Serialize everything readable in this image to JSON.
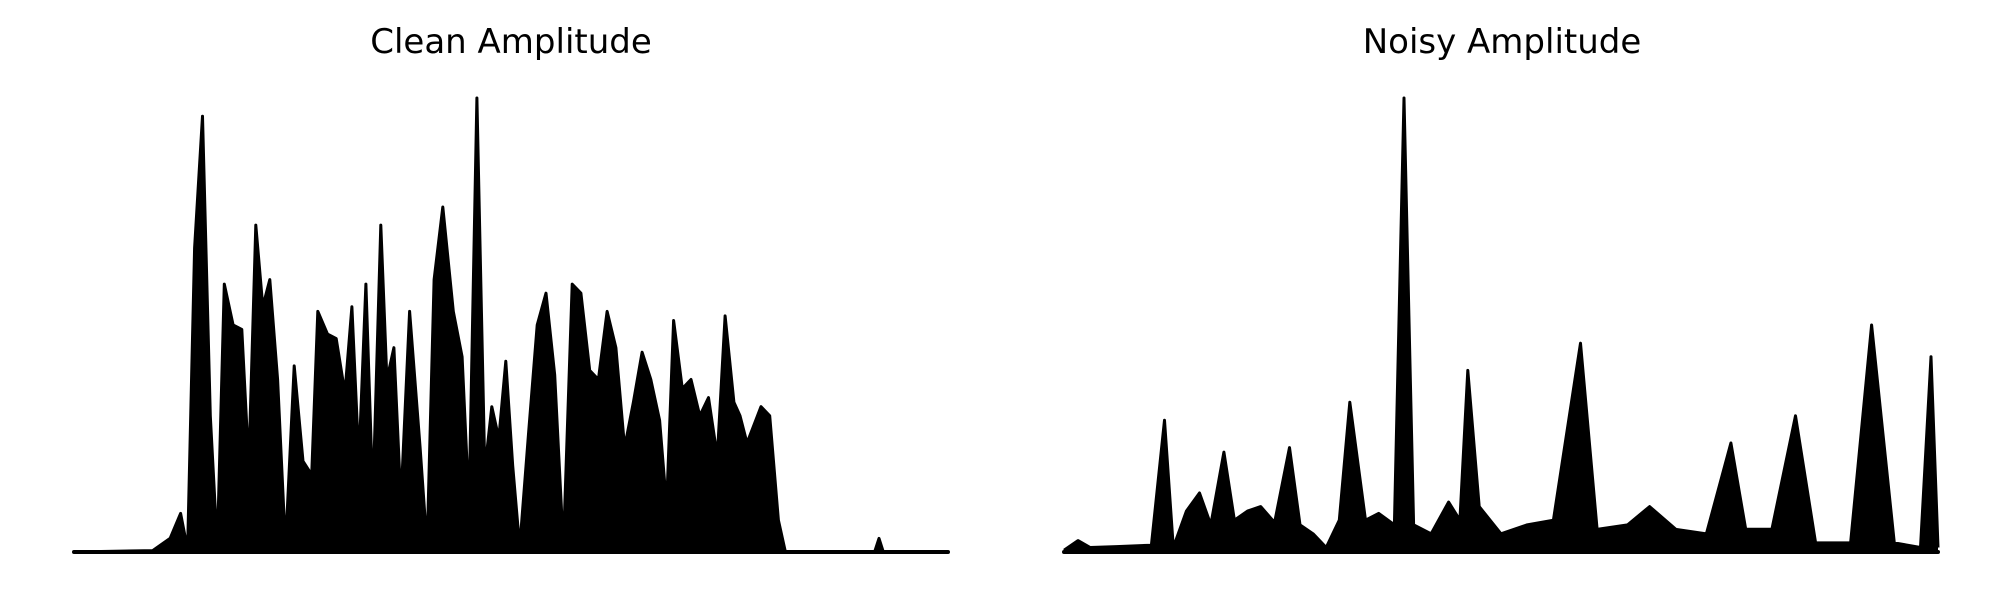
{
  "chart_data": [
    {
      "type": "line",
      "title": "Clean Amplitude",
      "axes_visible": false,
      "grid": false,
      "line_color": "#000000",
      "x_range": [
        0,
        1
      ],
      "ylim": [
        0,
        1
      ],
      "envelope": [
        [
          0.0,
          0.0
        ],
        [
          0.09,
          0.003
        ],
        [
          0.11,
          0.03
        ],
        [
          0.122,
          0.085
        ],
        [
          0.13,
          0.005
        ],
        [
          0.138,
          0.67
        ],
        [
          0.147,
          0.96
        ],
        [
          0.156,
          0.3
        ],
        [
          0.164,
          0.01
        ],
        [
          0.172,
          0.59
        ],
        [
          0.182,
          0.5
        ],
        [
          0.192,
          0.49
        ],
        [
          0.2,
          0.19
        ],
        [
          0.208,
          0.72
        ],
        [
          0.216,
          0.54
        ],
        [
          0.224,
          0.6
        ],
        [
          0.233,
          0.38
        ],
        [
          0.242,
          0.01
        ],
        [
          0.252,
          0.41
        ],
        [
          0.262,
          0.2
        ],
        [
          0.272,
          0.17
        ],
        [
          0.279,
          0.53
        ],
        [
          0.29,
          0.48
        ],
        [
          0.3,
          0.47
        ],
        [
          0.31,
          0.35
        ],
        [
          0.318,
          0.54
        ],
        [
          0.326,
          0.2
        ],
        [
          0.334,
          0.59
        ],
        [
          0.342,
          0.12
        ],
        [
          0.351,
          0.72
        ],
        [
          0.358,
          0.38
        ],
        [
          0.366,
          0.45
        ],
        [
          0.374,
          0.11
        ],
        [
          0.384,
          0.53
        ],
        [
          0.396,
          0.23
        ],
        [
          0.404,
          0.01
        ],
        [
          0.412,
          0.6
        ],
        [
          0.422,
          0.76
        ],
        [
          0.434,
          0.53
        ],
        [
          0.444,
          0.43
        ],
        [
          0.452,
          0.1
        ],
        [
          0.461,
          1.0
        ],
        [
          0.47,
          0.18
        ],
        [
          0.478,
          0.32
        ],
        [
          0.486,
          0.25
        ],
        [
          0.494,
          0.42
        ],
        [
          0.502,
          0.19
        ],
        [
          0.51,
          0.01
        ],
        [
          0.52,
          0.26
        ],
        [
          0.53,
          0.5
        ],
        [
          0.54,
          0.57
        ],
        [
          0.55,
          0.39
        ],
        [
          0.56,
          0.01
        ],
        [
          0.57,
          0.59
        ],
        [
          0.58,
          0.57
        ],
        [
          0.59,
          0.4
        ],
        [
          0.6,
          0.38
        ],
        [
          0.61,
          0.53
        ],
        [
          0.62,
          0.45
        ],
        [
          0.63,
          0.23
        ],
        [
          0.64,
          0.33
        ],
        [
          0.65,
          0.44
        ],
        [
          0.66,
          0.38
        ],
        [
          0.67,
          0.29
        ],
        [
          0.678,
          0.1
        ],
        [
          0.686,
          0.51
        ],
        [
          0.696,
          0.36
        ],
        [
          0.706,
          0.38
        ],
        [
          0.716,
          0.3
        ],
        [
          0.726,
          0.34
        ],
        [
          0.736,
          0.21
        ],
        [
          0.745,
          0.52
        ],
        [
          0.755,
          0.33
        ],
        [
          0.762,
          0.3
        ],
        [
          0.77,
          0.24
        ],
        [
          0.778,
          0.28
        ],
        [
          0.786,
          0.32
        ],
        [
          0.796,
          0.3
        ],
        [
          0.806,
          0.07
        ],
        [
          0.814,
          0.0
        ],
        [
          0.916,
          0.0
        ],
        [
          0.921,
          0.03
        ],
        [
          0.926,
          0.0
        ],
        [
          1.0,
          0.0
        ]
      ]
    },
    {
      "type": "line",
      "title": "Noisy Amplitude",
      "axes_visible": false,
      "grid": false,
      "line_color": "#000000",
      "x_range": [
        0,
        1
      ],
      "ylim": [
        0,
        1
      ],
      "envelope": [
        [
          0.0,
          0.004
        ],
        [
          0.016,
          0.025
        ],
        [
          0.03,
          0.01
        ],
        [
          0.06,
          0.012
        ],
        [
          0.1,
          0.015
        ],
        [
          0.115,
          0.29
        ],
        [
          0.125,
          0.01
        ],
        [
          0.14,
          0.09
        ],
        [
          0.155,
          0.13
        ],
        [
          0.168,
          0.06
        ],
        [
          0.183,
          0.22
        ],
        [
          0.195,
          0.07
        ],
        [
          0.21,
          0.09
        ],
        [
          0.225,
          0.1
        ],
        [
          0.241,
          0.065
        ],
        [
          0.258,
          0.23
        ],
        [
          0.27,
          0.06
        ],
        [
          0.285,
          0.04
        ],
        [
          0.3,
          0.01
        ],
        [
          0.315,
          0.07
        ],
        [
          0.327,
          0.33
        ],
        [
          0.345,
          0.07
        ],
        [
          0.36,
          0.085
        ],
        [
          0.378,
          0.06
        ],
        [
          0.389,
          1.0
        ],
        [
          0.4,
          0.06
        ],
        [
          0.42,
          0.04
        ],
        [
          0.44,
          0.11
        ],
        [
          0.453,
          0.07
        ],
        [
          0.462,
          0.4
        ],
        [
          0.475,
          0.1
        ],
        [
          0.5,
          0.04
        ],
        [
          0.53,
          0.06
        ],
        [
          0.56,
          0.07
        ],
        [
          0.591,
          0.46
        ],
        [
          0.61,
          0.05
        ],
        [
          0.645,
          0.06
        ],
        [
          0.67,
          0.1
        ],
        [
          0.7,
          0.05
        ],
        [
          0.735,
          0.04
        ],
        [
          0.763,
          0.24
        ],
        [
          0.78,
          0.05
        ],
        [
          0.81,
          0.05
        ],
        [
          0.837,
          0.3
        ],
        [
          0.86,
          0.02
        ],
        [
          0.9,
          0.02
        ],
        [
          0.924,
          0.5
        ],
        [
          0.95,
          0.02
        ],
        [
          0.98,
          0.01
        ],
        [
          0.992,
          0.43
        ],
        [
          1.0,
          0.01
        ]
      ]
    }
  ]
}
